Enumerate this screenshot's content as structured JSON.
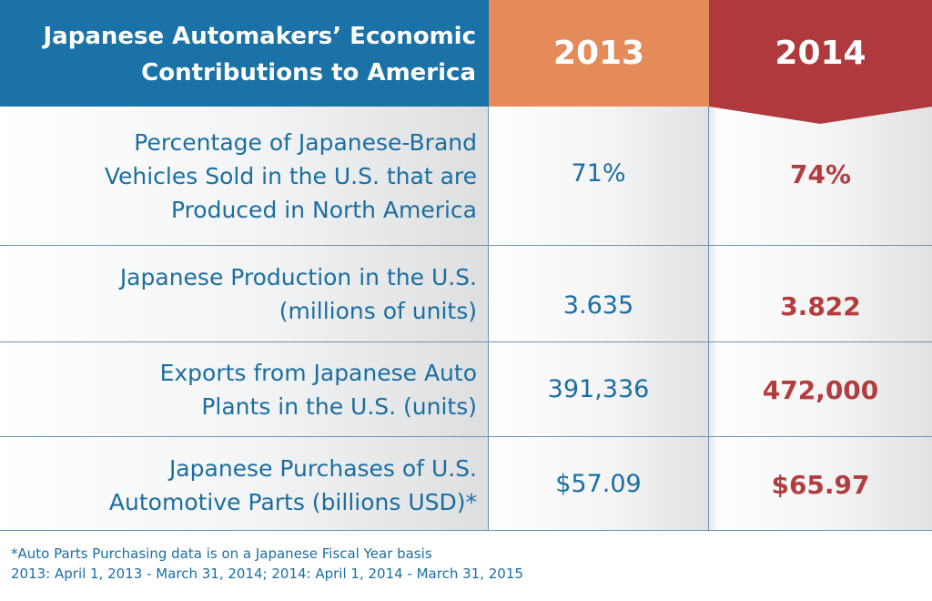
{
  "header": {
    "title": "Japanese Automakers’ Economic\nContributions to America",
    "col_2013": "2013",
    "col_2014": "2014"
  },
  "rows": [
    {
      "label": "Percentage of Japanese-Brand\nVehicles Sold in the U.S. that are\nProduced in North America",
      "v2013": "71%",
      "v2014": "74%"
    },
    {
      "label": "Japanese Production in the U.S.\n(millions of units)",
      "v2013": "3.635",
      "v2014": "3.822"
    },
    {
      "label": "Exports from Japanese Auto\nPlants in the U.S. (units)",
      "v2013": "391,336",
      "v2014": "472,000"
    },
    {
      "label": "Japanese Purchases of U.S.\nAutomotive Parts (billions USD)*",
      "v2013": "$57.09",
      "v2014": "$65.97"
    }
  ],
  "footnote": {
    "line1": "*Auto Parts Purchasing data is on a Japanese Fiscal Year basis",
    "line2": "2013: April 1, 2013 - March 31, 2014; 2014: April 1, 2014 - March 31, 2015"
  },
  "colors": {
    "header_blue": "#1b72a6",
    "header_orange": "#e48b59",
    "header_red": "#b0393e",
    "text_blue": "#1b6ea1",
    "text_red": "#b23d3f"
  }
}
